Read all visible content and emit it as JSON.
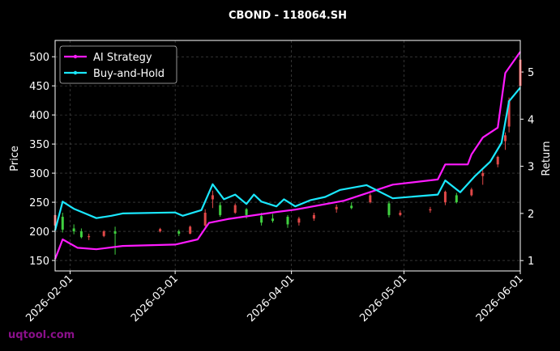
{
  "chart_data": {
    "type": "candlestick",
    "title": "CBOND - 118064.SH",
    "ylabel": "Price",
    "y2label": "Return",
    "watermark": "uqtool.com",
    "xlim": [
      "2026-01-28",
      "2026-06-01"
    ],
    "xticks": [
      "2026-02-01",
      "2026-03-01",
      "2026-04-01",
      "2026-05-01",
      "2026-06-01"
    ],
    "ylim": [
      132,
      528
    ],
    "yticks": [
      150,
      200,
      250,
      300,
      350,
      400,
      450,
      500
    ],
    "y2lim": [
      0.78,
      5.67
    ],
    "y2ticks": [
      1,
      2,
      3,
      4,
      5
    ],
    "grid": true,
    "legend": "upper left",
    "candles": {
      "up_color": "#e04848",
      "down_color": "#40d040",
      "x": [
        "2026-01-28",
        "2026-01-30",
        "2026-02-02",
        "2026-02-04",
        "2026-02-06",
        "2026-02-10",
        "2026-02-13",
        "2026-02-25",
        "2026-03-02",
        "2026-03-05",
        "2026-03-09",
        "2026-03-11",
        "2026-03-13",
        "2026-03-17",
        "2026-03-20",
        "2026-03-24",
        "2026-03-27",
        "2026-03-31",
        "2026-04-03",
        "2026-04-07",
        "2026-04-13",
        "2026-04-17",
        "2026-04-22",
        "2026-04-27",
        "2026-04-30",
        "2026-05-08",
        "2026-05-12",
        "2026-05-15",
        "2026-05-19",
        "2026-05-22",
        "2026-05-26",
        "2026-05-28",
        "2026-05-29",
        "2026-06-01"
      ],
      "open": [
        210,
        225,
        205,
        200,
        190,
        192,
        200,
        200,
        200,
        196,
        210,
        255,
        245,
        232,
        238,
        226,
        222,
        225,
        215,
        222,
        238,
        244,
        250,
        248,
        228,
        236,
        250,
        262,
        262,
        295,
        315,
        355,
        380,
        450
      ],
      "high": [
        230,
        232,
        212,
        205,
        196,
        202,
        208,
        206,
        203,
        210,
        238,
        270,
        250,
        248,
        240,
        232,
        230,
        228,
        225,
        232,
        246,
        250,
        265,
        252,
        236,
        242,
        270,
        266,
        275,
        305,
        330,
        370,
        430,
        505
      ],
      "low": [
        205,
        198,
        195,
        188,
        185,
        190,
        160,
        198,
        192,
        195,
        208,
        240,
        225,
        230,
        222,
        210,
        215,
        206,
        210,
        218,
        232,
        238,
        248,
        224,
        226,
        232,
        245,
        248,
        260,
        280,
        310,
        340,
        370,
        440
      ],
      "close": [
        228,
        203,
        200,
        190,
        192,
        200,
        196,
        204,
        196,
        208,
        232,
        262,
        228,
        245,
        228,
        215,
        218,
        212,
        222,
        228,
        242,
        240,
        262,
        228,
        232,
        238,
        268,
        250,
        272,
        300,
        328,
        365,
        425,
        495
      ]
    },
    "series": [
      {
        "name": "AI Strategy",
        "color": "#ff1aff",
        "axis": "y2",
        "x": [
          "2026-01-28",
          "2026-01-30",
          "2026-02-03",
          "2026-02-08",
          "2026-02-15",
          "2026-03-01",
          "2026-03-07",
          "2026-03-10",
          "2026-03-15",
          "2026-03-28",
          "2026-04-02",
          "2026-04-15",
          "2026-04-28",
          "2026-05-10",
          "2026-05-12",
          "2026-05-18",
          "2026-05-19",
          "2026-05-22",
          "2026-05-26",
          "2026-05-28",
          "2026-06-01"
        ],
        "values": [
          1.03,
          1.45,
          1.27,
          1.24,
          1.31,
          1.34,
          1.45,
          1.8,
          1.88,
          2.03,
          2.08,
          2.27,
          2.61,
          2.72,
          3.04,
          3.04,
          3.25,
          3.61,
          3.82,
          4.98,
          5.43
        ]
      },
      {
        "name": "Buy-and-Hold",
        "color": "#1ae8ff",
        "axis": "y2",
        "x": [
          "2026-01-28",
          "2026-01-30",
          "2026-02-02",
          "2026-02-05",
          "2026-02-08",
          "2026-02-12",
          "2026-02-15",
          "2026-03-01",
          "2026-03-03",
          "2026-03-08",
          "2026-03-11",
          "2026-03-14",
          "2026-03-17",
          "2026-03-20",
          "2026-03-22",
          "2026-03-24",
          "2026-03-28",
          "2026-03-30",
          "2026-04-02",
          "2026-04-06",
          "2026-04-10",
          "2026-04-14",
          "2026-04-21",
          "2026-04-28",
          "2026-05-10",
          "2026-05-12",
          "2026-05-16",
          "2026-05-20",
          "2026-05-24",
          "2026-05-27",
          "2026-05-29",
          "2026-06-01"
        ],
        "values": [
          1.64,
          2.25,
          2.1,
          2.0,
          1.9,
          1.95,
          2.0,
          2.02,
          1.95,
          2.07,
          2.62,
          2.3,
          2.4,
          2.2,
          2.4,
          2.25,
          2.15,
          2.3,
          2.15,
          2.28,
          2.35,
          2.5,
          2.6,
          2.32,
          2.4,
          2.7,
          2.45,
          2.8,
          3.1,
          3.5,
          4.38,
          4.67
        ]
      }
    ]
  }
}
